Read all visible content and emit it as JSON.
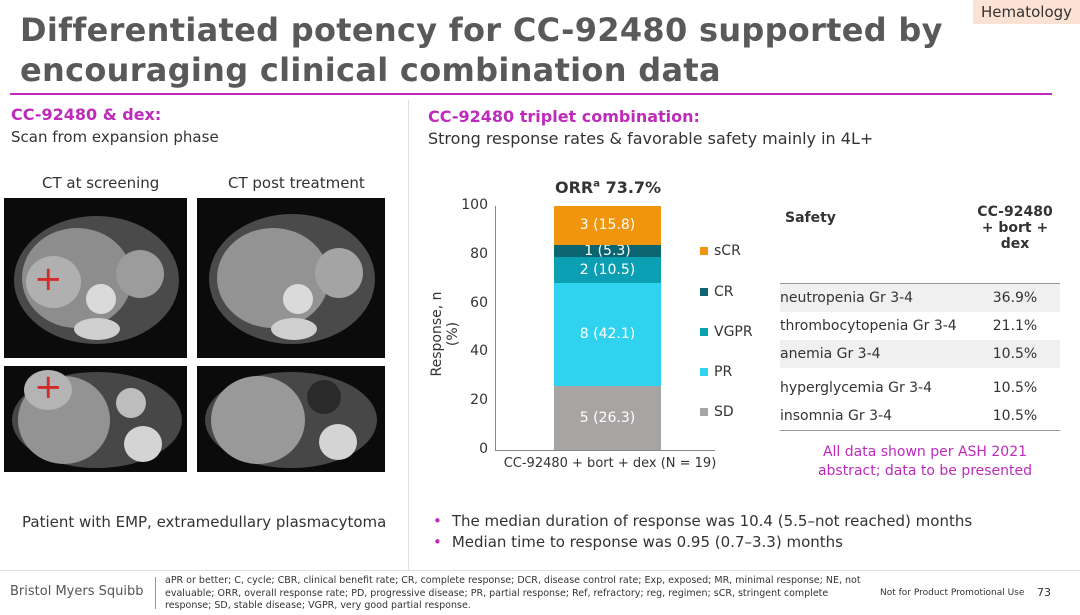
{
  "header": {
    "tag": "Hematology",
    "title": "Differentiated potency for CC-92480 supported by encouraging clinical combination data"
  },
  "left": {
    "heading": "CC-92480 & dex:",
    "subheading": "Scan from expansion phase",
    "ct_screening_label": "CT at screening",
    "ct_post_label": "CT post treatment",
    "patient_note": "Patient with EMP, extramedullary plasmacytoma"
  },
  "right": {
    "heading": "CC-92480 triplet combination:",
    "subheading": "Strong response rates & favorable safety mainly in 4L+"
  },
  "chart_data": {
    "type": "bar",
    "title": "ORR",
    "title_superscript": "a",
    "title_value": "73.7%",
    "ylabel": "Response, n (%)",
    "ylim": [
      0,
      100
    ],
    "yticks": [
      "0",
      "20",
      "40",
      "60",
      "80",
      "100"
    ],
    "categories": [
      "CC-92480 + bort + dex (N = 19)"
    ],
    "stacked": true,
    "series": [
      {
        "name": "SD",
        "value": 26.3,
        "label": "5 (26.3)",
        "color": "#a8a4a4"
      },
      {
        "name": "PR",
        "value": 42.1,
        "label": "8 (42.1)",
        "color": "#2fd3ef"
      },
      {
        "name": "VGPR",
        "value": 10.5,
        "label": "2 (10.5)",
        "color": "#0a9fb2"
      },
      {
        "name": "CR",
        "value": 5.3,
        "label": "1 (5.3)",
        "color": "#0b6570"
      },
      {
        "name": "sCR",
        "value": 15.8,
        "label": "3 (15.8)",
        "color": "#f0950c"
      }
    ],
    "legend": [
      "sCR",
      "CR",
      "VGPR",
      "PR",
      "SD"
    ]
  },
  "safety": {
    "col1_header": "Safety",
    "col2_header": "CC-92480 + bort + dex",
    "rows": [
      {
        "name": "neutropenia Gr 3-4",
        "value": "36.9%"
      },
      {
        "name": "thrombocytopenia Gr 3-4",
        "value": "21.1%"
      },
      {
        "name": "anemia Gr 3-4",
        "value": "10.5%"
      },
      {
        "name": "hyperglycemia Gr 3-4",
        "value": "10.5%"
      },
      {
        "name": "insomnia Gr 3-4",
        "value": "10.5%"
      }
    ]
  },
  "ash_note": "All data shown per ASH 2021 abstract; data to be presented",
  "bullets": [
    "The median duration of response was 10.4 (5.5–not reached) months",
    "Median time to response was 0.95 (0.7–3.3) months"
  ],
  "footer": {
    "logo": "Bristol Myers Squibb",
    "footnote": "aPR or better; C, cycle; CBR, clinical benefit rate; CR, complete response; DCR, disease control rate; Exp, exposed; MR, minimal response; NE, not evaluable; ORR, overall response rate; PD, progressive disease; PR, partial response; Ref, refractory; reg, regimen; sCR, stringent complete response; SD, stable disease; VGPR, very good partial response.",
    "not_promo": "Not for Product Promotional Use",
    "page_number": "73"
  },
  "icons": {
    "target_marker": "crosshair-icon"
  }
}
